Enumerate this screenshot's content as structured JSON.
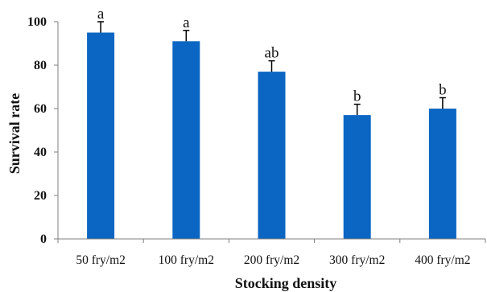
{
  "chart_data": {
    "type": "bar",
    "title": "",
    "xlabel": "Stocking density",
    "ylabel": "Survival rate",
    "categories": [
      "50 fry/m2",
      "100 fry/m2",
      "200 fry/m2",
      "300 fry/m2",
      "400 fry/m2"
    ],
    "values": [
      95,
      91,
      77,
      57,
      60
    ],
    "errors": [
      5,
      5,
      5,
      5,
      5
    ],
    "significance_letters": [
      "a",
      "a",
      "ab",
      "b",
      "b"
    ],
    "ylim": [
      0,
      100
    ],
    "yticks": [
      0,
      20,
      40,
      60,
      80,
      100
    ],
    "grid": false,
    "legend": "none",
    "bar_color": "#0a66c2"
  }
}
